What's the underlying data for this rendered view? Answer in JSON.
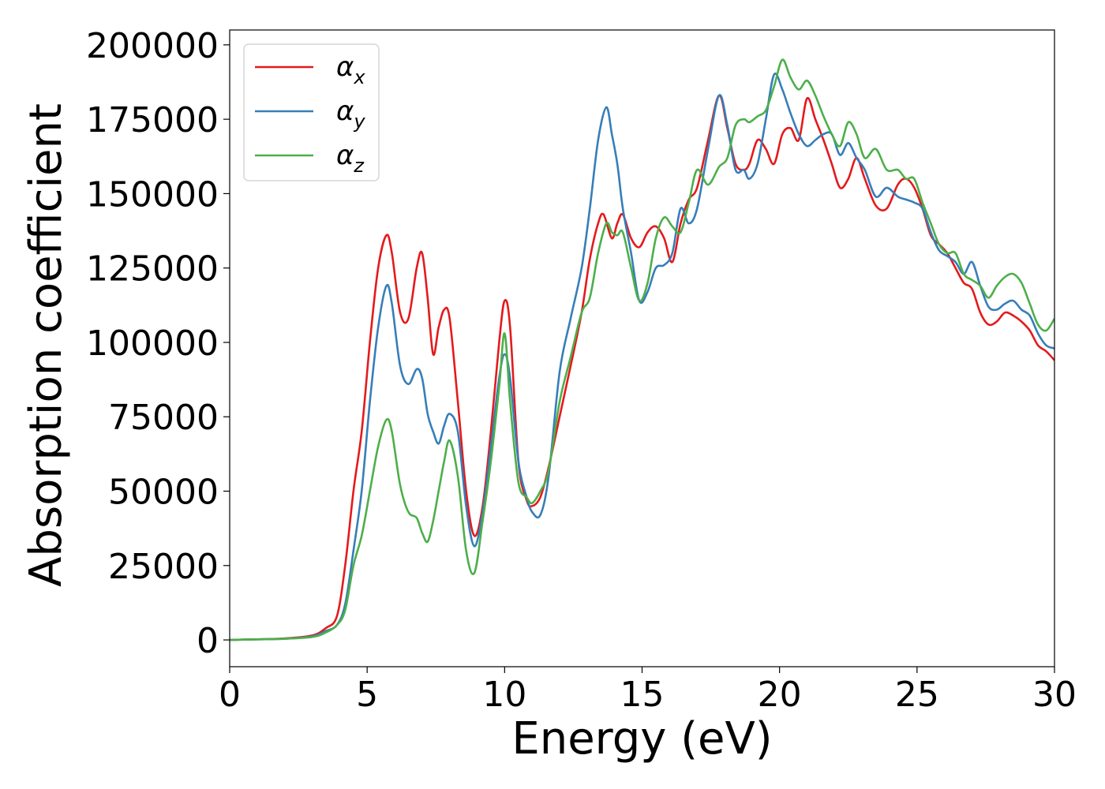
{
  "chart_data": {
    "type": "line",
    "xlabel": "Energy (eV)",
    "ylabel": "Absorption coefficient",
    "xlim": [
      0,
      30
    ],
    "ylim": [
      -9000,
      205000
    ],
    "xticks": [
      0,
      5,
      10,
      15,
      20,
      25,
      30
    ],
    "yticks": [
      0,
      25000,
      50000,
      75000,
      100000,
      125000,
      150000,
      175000,
      200000
    ],
    "grid": false,
    "legend_position": "top-left",
    "series": [
      {
        "name": "α",
        "subscript": "x",
        "color": "#e41a1c",
        "x": [
          0,
          1,
          2,
          3,
          3.5,
          3.9,
          4.2,
          4.5,
          4.8,
          5.1,
          5.4,
          5.7,
          5.9,
          6.2,
          6.5,
          6.8,
          7.0,
          7.2,
          7.4,
          7.6,
          7.8,
          8.0,
          8.3,
          8.6,
          8.9,
          9.2,
          9.5,
          9.8,
          10.0,
          10.2,
          10.5,
          10.8,
          11.0,
          11.3,
          11.6,
          12.0,
          12.4,
          12.8,
          13.1,
          13.4,
          13.6,
          13.9,
          14.1,
          14.3,
          14.6,
          14.9,
          15.2,
          15.5,
          15.8,
          16.1,
          16.4,
          16.7,
          17.0,
          17.4,
          17.8,
          18.1,
          18.4,
          18.7,
          18.9,
          19.2,
          19.5,
          19.8,
          20.1,
          20.4,
          20.7,
          21.0,
          21.3,
          21.6,
          21.9,
          22.2,
          22.5,
          22.8,
          23.1,
          23.5,
          23.9,
          24.3,
          24.6,
          24.9,
          25.2,
          25.5,
          25.8,
          26.1,
          26.4,
          26.7,
          27.0,
          27.3,
          27.6,
          27.9,
          28.2,
          28.5,
          28.8,
          29.1,
          29.4,
          29.7,
          30.0
        ],
        "values": [
          0,
          200,
          500,
          1500,
          4000,
          8000,
          25000,
          50000,
          70000,
          100000,
          125000,
          136000,
          130000,
          110000,
          108000,
          125000,
          130000,
          115000,
          96000,
          105000,
          111000,
          108000,
          80000,
          50000,
          35000,
          45000,
          70000,
          100000,
          114000,
          105000,
          60000,
          47000,
          45000,
          48000,
          58000,
          75000,
          92000,
          110000,
          128000,
          140000,
          143000,
          135000,
          140000,
          143000,
          135000,
          132000,
          137000,
          139000,
          135000,
          127000,
          140000,
          148000,
          152000,
          168000,
          183000,
          172000,
          160000,
          158000,
          160000,
          168000,
          165000,
          160000,
          170000,
          172000,
          168000,
          182000,
          175000,
          168000,
          160000,
          152000,
          155000,
          162000,
          155000,
          146000,
          145000,
          153000,
          155000,
          152000,
          145000,
          136000,
          133000,
          130000,
          125000,
          120000,
          118000,
          110000,
          106000,
          107000,
          110000,
          109000,
          107000,
          104000,
          99000,
          97000,
          94000
        ]
      },
      {
        "name": "α",
        "subscript": "y",
        "color": "#377eb8",
        "x": [
          0,
          1,
          2,
          3,
          3.5,
          3.9,
          4.2,
          4.5,
          4.8,
          5.1,
          5.4,
          5.7,
          5.9,
          6.2,
          6.5,
          6.8,
          7.0,
          7.2,
          7.4,
          7.6,
          7.8,
          8.0,
          8.3,
          8.6,
          8.9,
          9.2,
          9.5,
          9.8,
          10.0,
          10.2,
          10.5,
          10.8,
          11.0,
          11.3,
          11.6,
          12.0,
          12.4,
          12.8,
          13.1,
          13.4,
          13.7,
          13.9,
          14.1,
          14.3,
          14.6,
          14.9,
          15.2,
          15.5,
          15.8,
          16.1,
          16.4,
          16.7,
          17.0,
          17.4,
          17.8,
          18.1,
          18.4,
          18.7,
          18.9,
          19.2,
          19.5,
          19.8,
          20.1,
          20.4,
          20.7,
          21.0,
          21.3,
          21.6,
          21.9,
          22.2,
          22.5,
          22.8,
          23.1,
          23.5,
          23.9,
          24.3,
          24.6,
          24.9,
          25.2,
          25.5,
          25.8,
          26.1,
          26.4,
          26.7,
          27.0,
          27.3,
          27.6,
          27.9,
          28.2,
          28.5,
          28.8,
          29.1,
          29.4,
          29.7,
          30.0
        ],
        "values": [
          0,
          200,
          400,
          1200,
          3000,
          5000,
          12000,
          30000,
          50000,
          80000,
          105000,
          119000,
          113000,
          92000,
          86000,
          91000,
          88000,
          76000,
          70000,
          66000,
          72000,
          76000,
          70000,
          45000,
          31500,
          43000,
          65000,
          88000,
          96000,
          88000,
          60000,
          48000,
          43000,
          42000,
          55000,
          90000,
          108000,
          125000,
          145000,
          168000,
          179000,
          170000,
          160000,
          145000,
          130000,
          114000,
          117000,
          125000,
          126000,
          130000,
          145000,
          140000,
          145000,
          165000,
          183000,
          173000,
          158000,
          158000,
          155000,
          160000,
          175000,
          190000,
          185000,
          177000,
          170000,
          166000,
          168000,
          170000,
          170000,
          163000,
          167000,
          162000,
          158000,
          149000,
          152000,
          149000,
          148000,
          147000,
          145000,
          137000,
          131000,
          129000,
          127000,
          123000,
          127000,
          119000,
          112000,
          111000,
          113000,
          114000,
          111000,
          109000,
          103000,
          99000,
          98000
        ]
      },
      {
        "name": "α",
        "subscript": "z",
        "color": "#4daf4a",
        "x": [
          0,
          1,
          2,
          3,
          3.5,
          3.9,
          4.2,
          4.5,
          4.8,
          5.1,
          5.4,
          5.7,
          5.9,
          6.2,
          6.5,
          6.8,
          7.0,
          7.2,
          7.4,
          7.6,
          7.8,
          8.0,
          8.3,
          8.6,
          8.9,
          9.2,
          9.5,
          9.8,
          10.0,
          10.2,
          10.5,
          10.8,
          11.0,
          11.3,
          11.6,
          12.0,
          12.4,
          12.8,
          13.1,
          13.4,
          13.7,
          13.9,
          14.1,
          14.3,
          14.6,
          14.9,
          15.2,
          15.5,
          15.8,
          16.1,
          16.4,
          16.7,
          17.0,
          17.4,
          17.8,
          18.1,
          18.4,
          18.7,
          18.9,
          19.2,
          19.5,
          19.8,
          20.1,
          20.4,
          20.7,
          21.0,
          21.3,
          21.6,
          21.9,
          22.2,
          22.5,
          22.8,
          23.1,
          23.5,
          23.9,
          24.3,
          24.6,
          24.9,
          25.2,
          25.5,
          25.8,
          26.1,
          26.4,
          26.7,
          27.0,
          27.3,
          27.6,
          27.9,
          28.2,
          28.5,
          28.8,
          29.1,
          29.4,
          29.7,
          30.0
        ],
        "values": [
          0,
          200,
          400,
          1000,
          2500,
          5000,
          10000,
          25000,
          35000,
          50000,
          65000,
          74000,
          70000,
          52000,
          43000,
          41000,
          36000,
          33000,
          40000,
          50000,
          60000,
          67000,
          55000,
          30000,
          22500,
          40000,
          60000,
          85000,
          103000,
          80000,
          53000,
          48000,
          46000,
          50000,
          57000,
          80000,
          95000,
          110000,
          115000,
          130000,
          140000,
          137000,
          136000,
          137000,
          125000,
          114000,
          120000,
          135000,
          142000,
          139000,
          137000,
          147000,
          158000,
          153000,
          159000,
          162000,
          173000,
          175000,
          174000,
          176000,
          178000,
          186000,
          195000,
          189000,
          185000,
          188000,
          183000,
          176000,
          170000,
          166000,
          174000,
          170000,
          162000,
          165000,
          158000,
          158000,
          155000,
          155000,
          147000,
          140000,
          133000,
          130000,
          130000,
          123000,
          121000,
          119000,
          115000,
          119000,
          122000,
          123000,
          120000,
          113000,
          106000,
          104000,
          108000
        ]
      }
    ]
  }
}
